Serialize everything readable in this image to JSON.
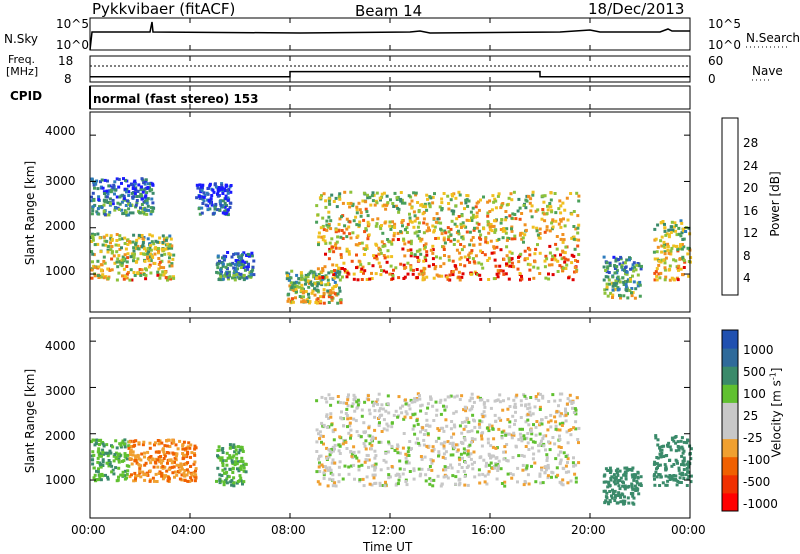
{
  "header": {
    "station": "Pykkvibaer (fitACF)",
    "beam": "Beam 14",
    "date": "18/Dec/2013"
  },
  "noise_panel": {
    "left_label": "N.Sky",
    "right_label": "N.Search",
    "left_ticks": [
      "10^5",
      "10^0"
    ],
    "right_ticks": [
      "10^5",
      "10^0"
    ]
  },
  "freq_panel": {
    "left_label_1": "Freq.",
    "left_label_2": "[MHz]",
    "right_label": "Nave",
    "left_ticks": [
      "18",
      "8"
    ],
    "right_ticks": [
      "60",
      "0"
    ],
    "freq_steps": [
      {
        "from_hour": 0,
        "to_hour": 8,
        "value_mhz": 10
      },
      {
        "from_hour": 8,
        "to_hour": 18,
        "value_mhz": 12
      },
      {
        "from_hour": 18,
        "to_hour": 24,
        "value_mhz": 10
      }
    ]
  },
  "cpid": {
    "label": "CPID",
    "mode_text": "normal (fast stereo) 153"
  },
  "power_panel": {
    "ylabel": "Slant Range [km]",
    "yticks": [
      "4000",
      "3000",
      "2000",
      "1000"
    ],
    "colorbar_label": "Power [dB]",
    "colorbar_ticks": [
      "28",
      "24",
      "20",
      "16",
      "12",
      "8",
      "4"
    ]
  },
  "velocity_panel": {
    "ylabel": "Slant Range [km]",
    "yticks": [
      "4000",
      "3000",
      "2000",
      "1000"
    ],
    "colorbar_label": "Velocity [m s",
    "colorbar_label_sup": "-1",
    "colorbar_label_end": "]",
    "colorbar_ticks": [
      "1000",
      "500",
      "100",
      "25",
      "-25",
      "-100",
      "-500",
      "-1000"
    ]
  },
  "x_axis": {
    "label": "Time UT",
    "ticks": [
      "00:00",
      "04:00",
      "08:00",
      "12:00",
      "16:00",
      "20:00",
      "00:00"
    ]
  },
  "chart_data": {
    "type": "heatmap",
    "x_range_hours": [
      0,
      24
    ],
    "y_range_km": [
      180,
      4500
    ],
    "power_scale_db": [
      0,
      30
    ],
    "velocity_scale_ms": [
      -1000,
      1000
    ],
    "scatter_regions_approx": [
      {
        "from_hour": 0,
        "to_hour": 3.3,
        "range_km": [
          900,
          1900
        ],
        "power_db": 22
      },
      {
        "from_hour": 0,
        "to_hour": 2.5,
        "range_km": [
          2300,
          3100
        ],
        "power_db": 12
      },
      {
        "from_hour": 4.2,
        "to_hour": 5.6,
        "range_km": [
          2300,
          3000
        ],
        "power_db": 8
      },
      {
        "from_hour": 5.0,
        "to_hour": 6.5,
        "range_km": [
          900,
          1500
        ],
        "power_db": 12
      },
      {
        "from_hour": 7.8,
        "to_hour": 10.0,
        "range_km": [
          400,
          1100
        ],
        "power_db": 20
      },
      {
        "from_hour": 9.0,
        "to_hour": 19.5,
        "range_km": [
          900,
          2800
        ],
        "power_db": 24
      },
      {
        "from_hour": 20.5,
        "to_hour": 22.0,
        "range_km": [
          500,
          1400
        ],
        "power_db": 16
      },
      {
        "from_hour": 22.5,
        "to_hour": 24,
        "range_km": [
          900,
          2200
        ],
        "power_db": 22
      }
    ],
    "velocity_regions_approx": [
      {
        "from_hour": 0,
        "to_hour": 1.5,
        "range_km": [
          1000,
          1900
        ],
        "velocity_ms": 100
      },
      {
        "from_hour": 1.5,
        "to_hour": 4.2,
        "range_km": [
          1000,
          1900
        ],
        "velocity_ms": -100
      },
      {
        "from_hour": 5.0,
        "to_hour": 6.2,
        "range_km": [
          900,
          1800
        ],
        "velocity_ms": 100
      },
      {
        "from_hour": 9.0,
        "to_hour": 19.5,
        "range_km": [
          900,
          2900
        ],
        "velocity_ms": 0
      },
      {
        "from_hour": 20.5,
        "to_hour": 22.0,
        "range_km": [
          500,
          1300
        ],
        "velocity_ms": 400
      },
      {
        "from_hour": 22.5,
        "to_hour": 24,
        "range_km": [
          900,
          2000
        ],
        "velocity_ms": 400
      }
    ]
  }
}
